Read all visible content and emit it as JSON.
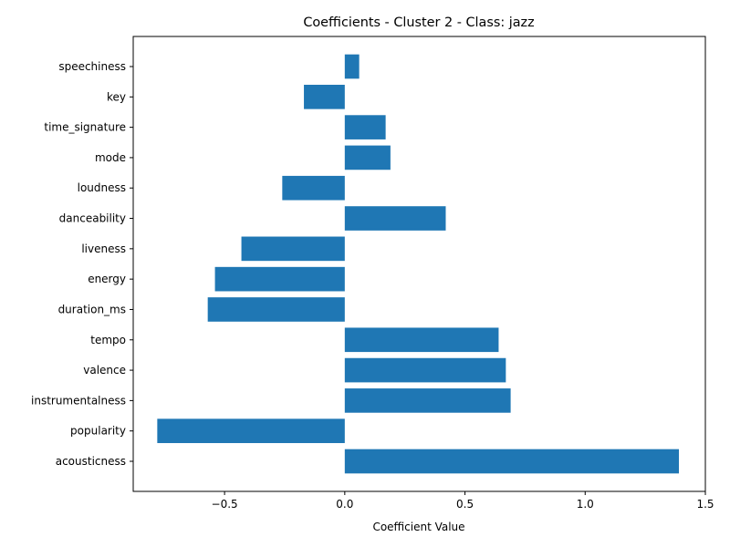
{
  "chart_data": {
    "type": "bar",
    "orientation": "horizontal",
    "title": "Coefficients - Cluster 2 - Class: jazz",
    "xlabel": "Coefficient Value",
    "ylabel": "",
    "categories": [
      "acousticness",
      "popularity",
      "instrumentalness",
      "valence",
      "tempo",
      "duration_ms",
      "energy",
      "liveness",
      "danceability",
      "loudness",
      "mode",
      "time_signature",
      "key",
      "speechiness"
    ],
    "values": [
      1.39,
      -0.78,
      0.69,
      0.67,
      0.64,
      -0.57,
      -0.54,
      -0.43,
      0.42,
      -0.26,
      0.19,
      0.17,
      -0.17,
      0.06
    ],
    "xlim": [
      -0.88,
      1.5
    ],
    "xticks": [
      -0.5,
      0.0,
      0.5,
      1.0,
      1.5
    ],
    "xtick_labels": [
      "−0.5",
      "0.0",
      "0.5",
      "1.0",
      "1.5"
    ],
    "grid": false,
    "bar_color": "#1f77b4"
  }
}
